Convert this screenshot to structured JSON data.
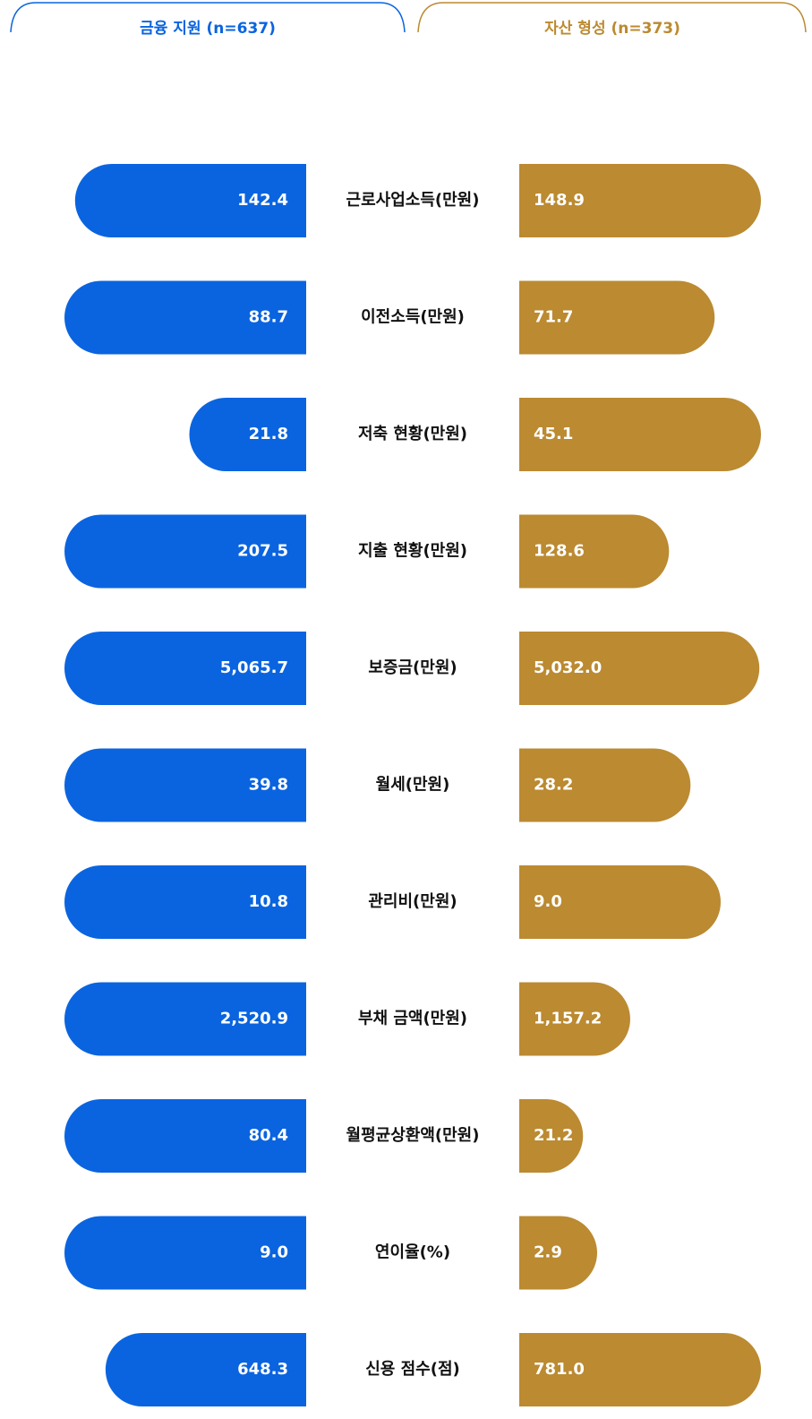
{
  "chart_data": {
    "type": "butterfly",
    "categories": [
      "근로사업소득(만원)",
      "이전소득(만원)",
      "저축 현황(만원)",
      "지출 현황(만원)",
      "보증금(만원)",
      "월세(만원)",
      "관리비(만원)",
      "부채 금액(만원)",
      "월평균상환액(만원)",
      "연이율(%)",
      "신용 점수(점)"
    ],
    "series": [
      {
        "name": "금융 지원 (n=637)",
        "color": "#0a64e0",
        "values": [
          142.4,
          88.7,
          21.8,
          207.5,
          5065.7,
          39.8,
          10.8,
          2520.9,
          80.4,
          9,
          648.3
        ],
        "value_labels": [
          "142.4",
          "88.7",
          "21.8",
          "207.5",
          "5,065.7",
          "39.8",
          "10.8",
          "2,520.9",
          "80.4",
          "9.0",
          "648.3"
        ]
      },
      {
        "name": "자산 형성 (n=373)",
        "color": "#bb8a31",
        "values": [
          148.9,
          71.7,
          45.1,
          128.6,
          5032,
          28.2,
          9,
          1157.2,
          21.2,
          2.9,
          781
        ],
        "value_labels": [
          "148.9",
          "71.7",
          "45.1",
          "128.6",
          "5,032.0",
          "28.2",
          "9.0",
          "1,157.2",
          "21.2",
          "2.9",
          "781.0"
        ]
      }
    ]
  }
}
